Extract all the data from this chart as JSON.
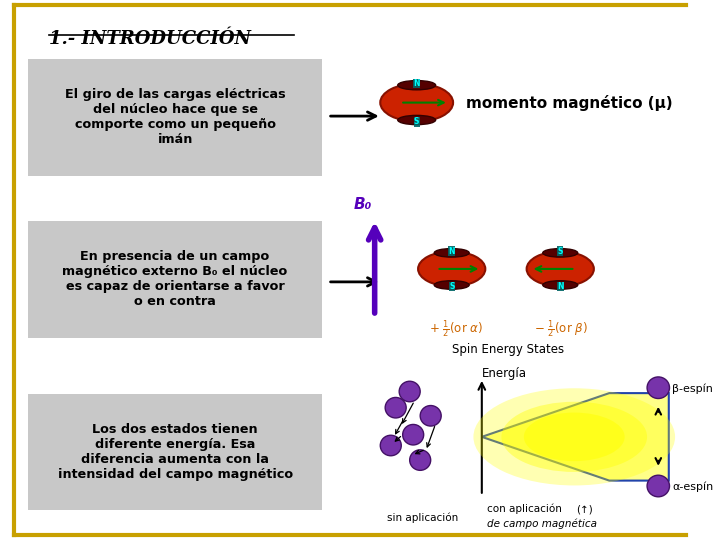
{
  "title": "1.- INTRODUCCIÓN",
  "bg_color": "#ffffff",
  "border_color": "#c8a000",
  "box_bg": "#c8c8c8",
  "box_texts": [
    "El giro de las cargas eléctricas\ndel núcleo hace que se\ncomporte como un pequeño\nimán",
    "En presencia de un campo\nmagnético externo B₀ el núcleo\nes capaz de orientarse a favor\no en contra",
    "Los dos estados tienen\ndiferente energía. Esa\ndiferencia aumenta con la\nintensidad del campo magnético"
  ],
  "momento_text": "momento magnético (μ)",
  "spin_text": "Spin Energy States",
  "B0_text": "B₀"
}
